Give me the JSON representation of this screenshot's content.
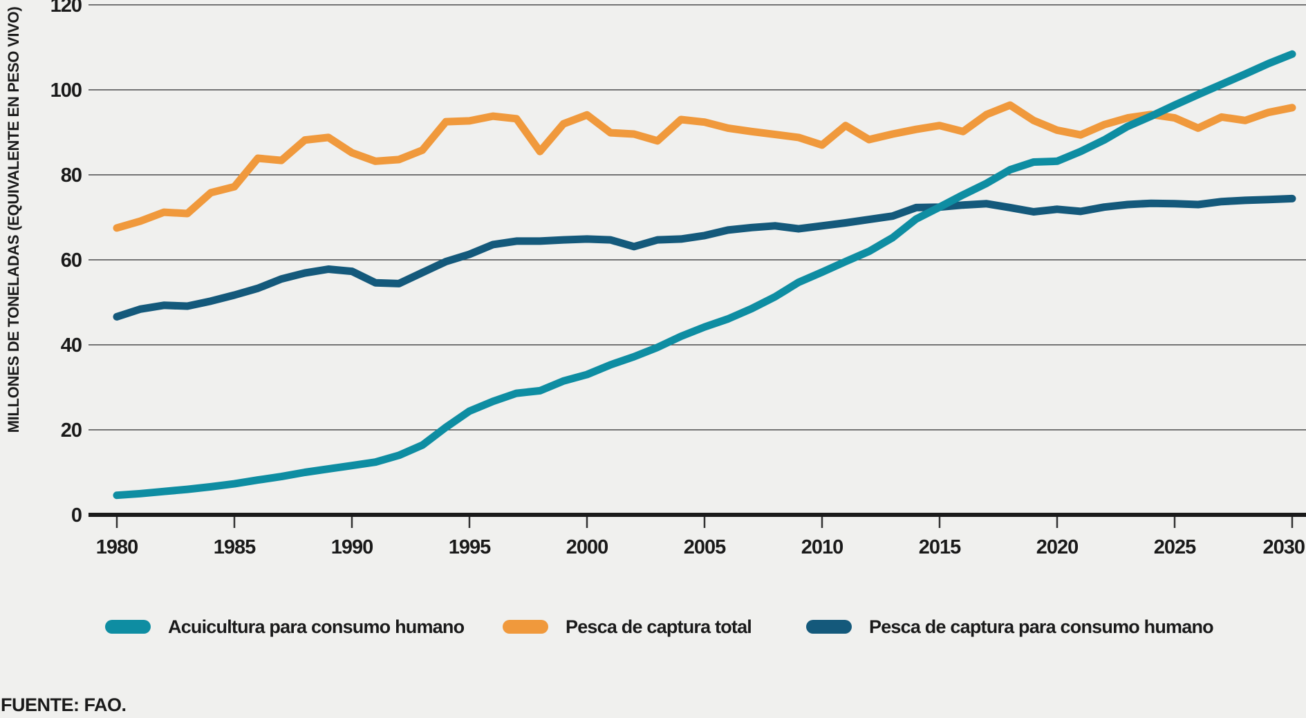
{
  "source": {
    "text": "FUENTE: FAO."
  },
  "colors": {
    "background": "#f0f0ee",
    "gridline": "#4b4b4b",
    "axis": "#1a1a1a",
    "text": "#1a1a1a"
  },
  "chart_data": {
    "type": "line",
    "title": "",
    "xlabel": "",
    "ylabel": "MILLONES DE TONELADAS (EQUIVALENTE EN PESO VIVO)",
    "xlim": [
      1980,
      2030
    ],
    "ylim": [
      0,
      120
    ],
    "x_ticks": [
      1980,
      1985,
      1990,
      1995,
      2000,
      2005,
      2010,
      2015,
      2020,
      2025,
      2030
    ],
    "y_ticks": [
      0,
      20,
      40,
      60,
      80,
      100,
      120
    ],
    "grid": true,
    "legend_position": "bottom",
    "years": [
      1980,
      1981,
      1982,
      1983,
      1984,
      1985,
      1986,
      1987,
      1988,
      1989,
      1990,
      1991,
      1992,
      1993,
      1994,
      1995,
      1996,
      1997,
      1998,
      1999,
      2000,
      2001,
      2002,
      2003,
      2004,
      2005,
      2006,
      2007,
      2008,
      2009,
      2010,
      2011,
      2012,
      2013,
      2014,
      2015,
      2016,
      2017,
      2018,
      2019,
      2020,
      2021,
      2022,
      2023,
      2024,
      2025,
      2026,
      2027,
      2028,
      2029,
      2030
    ],
    "series": [
      {
        "key": "capture-total",
        "name": "Pesca de captura total",
        "color": "#f0993c",
        "values": [
          67.5,
          69.1,
          71.2,
          70.9,
          75.8,
          77.2,
          83.9,
          83.4,
          88.2,
          88.8,
          85.2,
          83.2,
          83.6,
          85.8,
          92.5,
          92.7,
          93.8,
          93.2,
          85.5,
          92.0,
          94.1,
          89.9,
          89.6,
          88.0,
          93.0,
          92.4,
          91.0,
          90.2,
          89.5,
          88.8,
          87.0,
          91.6,
          88.3,
          89.6,
          90.7,
          91.6,
          90.2,
          94.2,
          96.4,
          92.8,
          90.5,
          89.4,
          91.8,
          93.4,
          94.2,
          93.4,
          91.0,
          93.6,
          92.8,
          94.7,
          95.8
        ]
      },
      {
        "key": "capture-human-consumption",
        "name": "Pesca de captura para consumo humano",
        "color": "#14597b",
        "values": [
          46.6,
          48.4,
          49.3,
          49.1,
          50.3,
          51.7,
          53.3,
          55.5,
          56.9,
          57.8,
          57.3,
          54.6,
          54.4,
          57.0,
          59.6,
          61.3,
          63.6,
          64.4,
          64.4,
          64.7,
          64.9,
          64.7,
          63.1,
          64.7,
          64.9,
          65.7,
          67.0,
          67.6,
          68.0,
          67.3,
          68.0,
          68.7,
          69.5,
          70.3,
          72.3,
          72.4,
          72.9,
          73.2,
          72.3,
          71.3,
          71.9,
          71.4,
          72.4,
          73.0,
          73.3,
          73.2,
          73.0,
          73.7,
          74.0,
          74.2,
          74.4
        ]
      },
      {
        "key": "aquaculture-human-consumption",
        "name": "Acuicultura para consumo humano",
        "color": "#0e8da2",
        "values": [
          4.6,
          5.0,
          5.5,
          6.0,
          6.6,
          7.3,
          8.2,
          9.0,
          10.0,
          10.8,
          11.6,
          12.4,
          14.0,
          16.4,
          20.6,
          24.4,
          26.7,
          28.6,
          29.2,
          31.5,
          33.0,
          35.3,
          37.2,
          39.4,
          42.0,
          44.2,
          46.1,
          48.5,
          51.3,
          54.7,
          57.1,
          59.6,
          62.0,
          65.2,
          69.6,
          72.4,
          75.3,
          78.0,
          81.2,
          83.0,
          83.2,
          85.5,
          88.2,
          91.4,
          93.8,
          96.4,
          98.9,
          101.3,
          103.7,
          106.2,
          108.4
        ]
      }
    ],
    "legend_order": [
      2,
      0,
      1
    ]
  }
}
